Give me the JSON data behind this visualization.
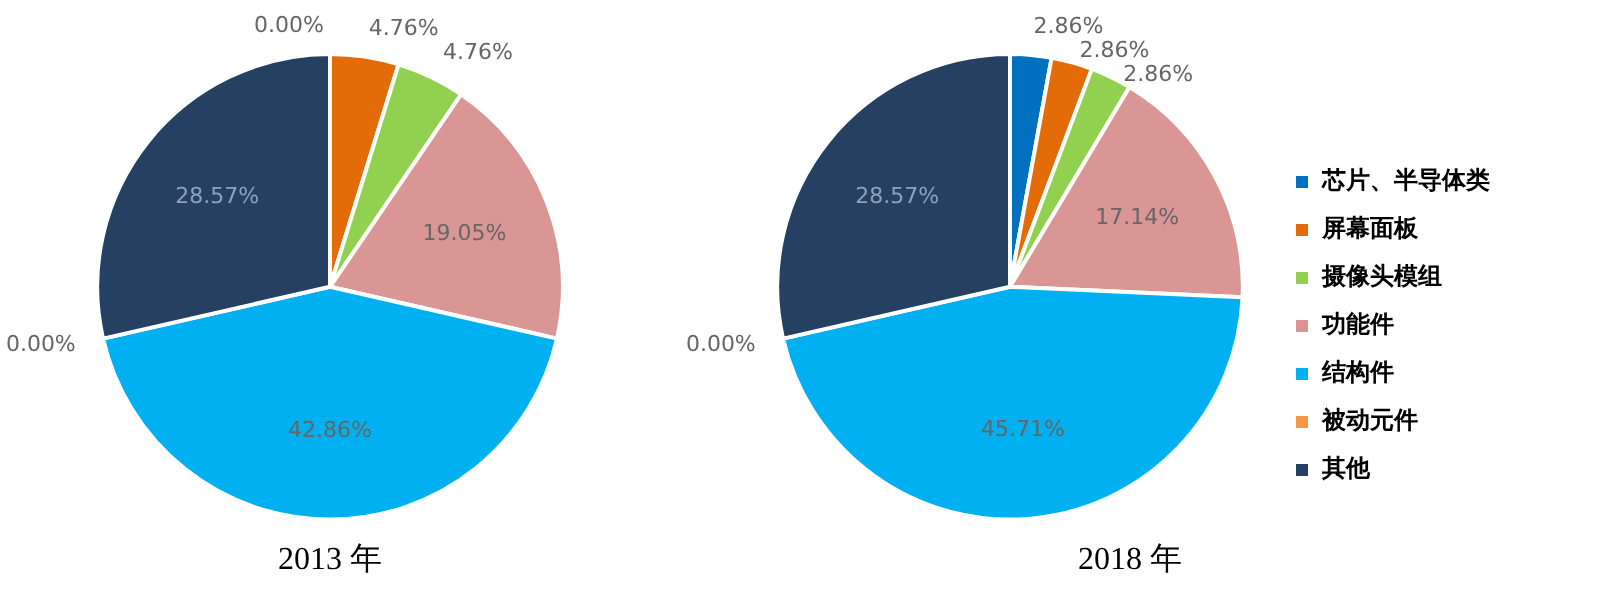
{
  "chart_data": [
    {
      "type": "pie",
      "title": "2013 年",
      "categories": [
        null,
        null,
        null,
        null,
        null,
        null,
        null
      ],
      "values": [
        0,
        4.76,
        4.76,
        19.05,
        42.86,
        0,
        28.57
      ],
      "value_labels": [
        "0.00%",
        "4.76%",
        "4.76%",
        "19.05%",
        "42.86%",
        "0.00%",
        "28.57%"
      ],
      "colors": [
        "#0070c0",
        "#e36c09",
        "#92d050",
        "#d99694",
        "#00b0f0",
        "#f79646",
        "#254061"
      ],
      "legend": false
    },
    {
      "type": "pie",
      "title": "2018 年",
      "categories": [
        "芯片、半导体类",
        "屏幕面板",
        "摄像头模组",
        "功能件",
        "结构件",
        "被动元件",
        "其他"
      ],
      "values": [
        2.86,
        2.86,
        2.86,
        17.14,
        45.71,
        0,
        28.57
      ],
      "value_labels": [
        "2.86%",
        "2.86%",
        "2.86%",
        "17.14%",
        "45.71%",
        "0.00%",
        "28.57%"
      ],
      "colors": [
        "#0070c0",
        "#e36c09",
        "#92d050",
        "#d99694",
        "#00b0f0",
        "#f79646",
        "#254061"
      ],
      "legend": "right"
    }
  ]
}
